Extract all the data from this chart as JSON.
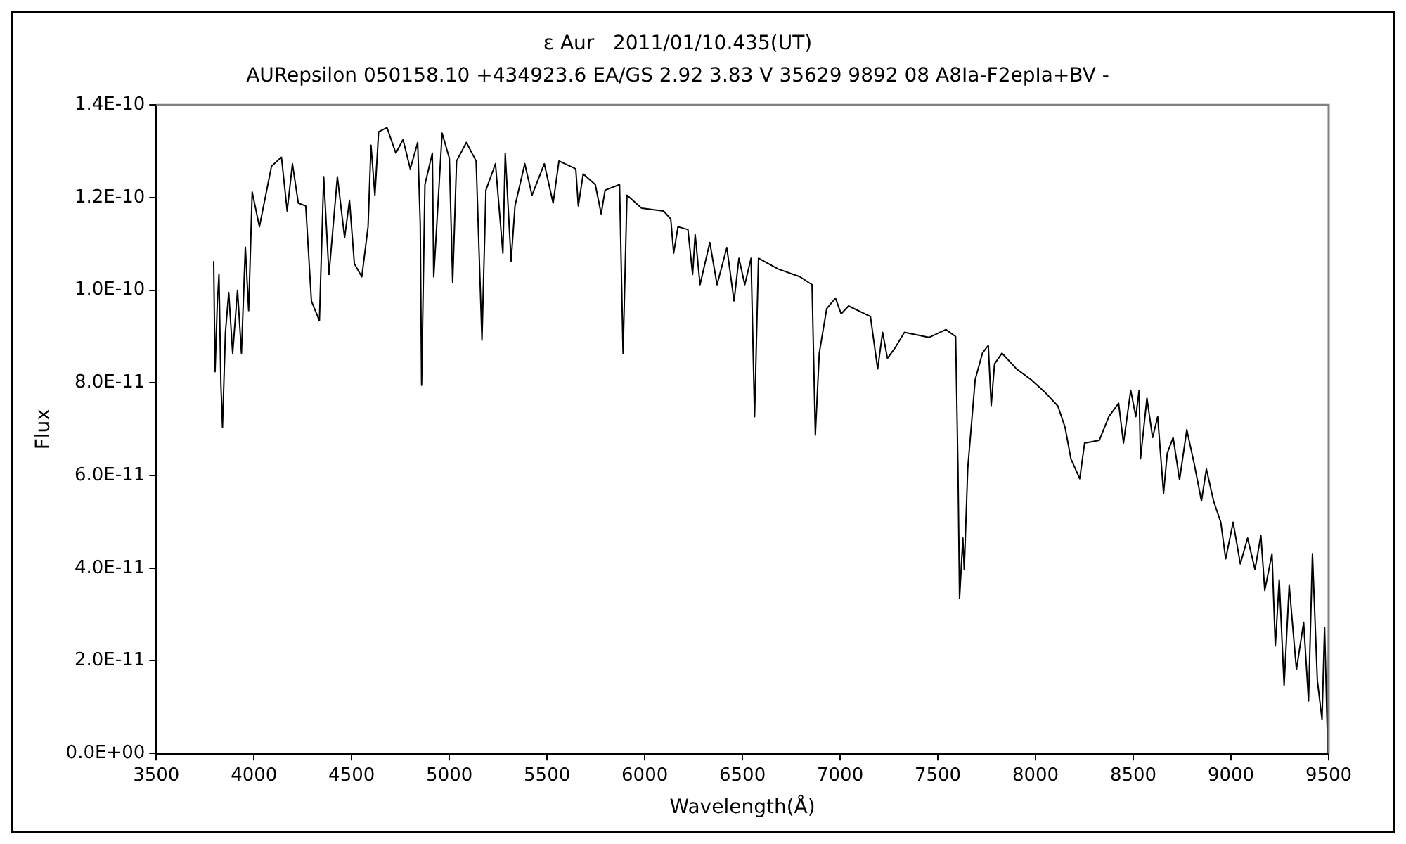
{
  "chart_data": {
    "type": "line",
    "title": "ε Aur   2011/01/10.435(UT)",
    "subtitle": "AURepsilon 050158.10 +434923.6 EA/GS 2.92 3.83 V 35629 9892 08 A8Ia-F2epIa+BV -",
    "xlabel": "Wavelength(Å)",
    "ylabel": "Flux",
    "color": "#000000",
    "grid": false,
    "xlim": [
      3500,
      9500
    ],
    "xticks": [
      3500,
      4000,
      4500,
      5000,
      5500,
      6000,
      6500,
      7000,
      7500,
      8000,
      8500,
      9000,
      9500
    ],
    "ylim": [
      0,
      1.4e-10
    ],
    "yticks": [
      {
        "value": 0,
        "label": "0.0E+00"
      },
      {
        "value": 2e-11,
        "label": "2.0E-11"
      },
      {
        "value": 4e-11,
        "label": "4.0E-11"
      },
      {
        "value": 6e-11,
        "label": "6.0E-11"
      },
      {
        "value": 8e-11,
        "label": "8.0E-11"
      },
      {
        "value": 1e-10,
        "label": "1.0E-10"
      },
      {
        "value": 1.2e-10,
        "label": "1.2E-10"
      },
      {
        "value": 1.4e-10,
        "label": "1.4E-10"
      }
    ],
    "x": [
      3794,
      3801,
      3812,
      3821,
      3831,
      3839,
      3854,
      3871,
      3891,
      3916,
      3936,
      3956,
      3973,
      3991,
      4028,
      4090,
      4141,
      4170,
      4197,
      4227,
      4265,
      4294,
      4335,
      4357,
      4384,
      4427,
      4464,
      4489,
      4514,
      4552,
      4584,
      4599,
      4619,
      4638,
      4681,
      4726,
      4763,
      4800,
      4838,
      4851,
      4858,
      4875,
      4913,
      4920,
      4963,
      5000,
      5017,
      5037,
      5087,
      5137,
      5167,
      5187,
      5236,
      5274,
      5286,
      5316,
      5336,
      5386,
      5423,
      5486,
      5531,
      5561,
      5647,
      5660,
      5685,
      5747,
      5777,
      5797,
      5871,
      5889,
      5909,
      5984,
      6096,
      6133,
      6148,
      6170,
      6221,
      6245,
      6258,
      6283,
      6333,
      6370,
      6420,
      6457,
      6482,
      6512,
      6544,
      6562,
      6582,
      6682,
      6794,
      6856,
      6873,
      6893,
      6931,
      6976,
      7005,
      7043,
      7155,
      7192,
      7217,
      7242,
      7280,
      7329,
      7454,
      7541,
      7591,
      7603,
      7611,
      7628,
      7635,
      7653,
      7691,
      7728,
      7758,
      7773,
      7790,
      7828,
      7903,
      7977,
      8052,
      8114,
      8151,
      8181,
      8226,
      8251,
      8326,
      8375,
      8425,
      8450,
      8487,
      8513,
      8530,
      8537,
      8570,
      8599,
      8625,
      8655,
      8674,
      8704,
      8737,
      8774,
      8812,
      8849,
      8874,
      8911,
      8948,
      8973,
      9011,
      9048,
      9085,
      9123,
      9153,
      9173,
      9210,
      9227,
      9247,
      9272,
      9298,
      9335,
      9372,
      9397,
      9417,
      9442,
      9466,
      9479,
      9496,
      9500
    ],
    "values": [
      1.063e-10,
      8.24e-11,
      9.66e-11,
      1.034e-10,
      7.95e-11,
      7.04e-11,
      9.09e-11,
      9.95e-11,
      8.64e-11,
      1e-10,
      8.64e-11,
      1.093e-10,
      9.56e-11,
      1.212e-10,
      1.137e-10,
      1.268e-10,
      1.287e-10,
      1.171e-10,
      1.273e-10,
      1.188e-10,
      1.182e-10,
      9.77e-11,
      9.34e-11,
      1.245e-10,
      1.034e-10,
      1.245e-10,
      1.114e-10,
      1.194e-10,
      1.057e-10,
      1.029e-10,
      1.137e-10,
      1.313e-10,
      1.205e-10,
      1.342e-10,
      1.351e-10,
      1.296e-10,
      1.325e-10,
      1.262e-10,
      1.319e-10,
      1.143e-10,
      7.95e-11,
      1.228e-10,
      1.296e-10,
      1.029e-10,
      1.339e-10,
      1.285e-10,
      1.017e-10,
      1.279e-10,
      1.319e-10,
      1.279e-10,
      8.92e-11,
      1.216e-10,
      1.273e-10,
      1.08e-10,
      1.296e-10,
      1.063e-10,
      1.182e-10,
      1.273e-10,
      1.205e-10,
      1.273e-10,
      1.188e-10,
      1.279e-10,
      1.262e-10,
      1.182e-10,
      1.251e-10,
      1.228e-10,
      1.165e-10,
      1.216e-10,
      1.228e-10,
      8.64e-11,
      1.205e-10,
      1.177e-10,
      1.171e-10,
      1.154e-10,
      1.08e-10,
      1.137e-10,
      1.131e-10,
      1.034e-10,
      1.12e-10,
      1.012e-10,
      1.103e-10,
      1.012e-10,
      1.092e-10,
      9.77e-11,
      1.069e-10,
      1.012e-10,
      1.069e-10,
      7.27e-11,
      1.069e-10,
      1.046e-10,
      1.029e-10,
      1.012e-10,
      6.87e-11,
      8.64e-11,
      9.6e-11,
      9.83e-11,
      9.49e-11,
      9.66e-11,
      9.43e-11,
      8.3e-11,
      9.09e-11,
      8.53e-11,
      8.75e-11,
      9.09e-11,
      8.98e-11,
      9.15e-11,
      9e-11,
      6.15e-11,
      3.35e-11,
      4.65e-11,
      3.97e-11,
      6.15e-11,
      8.07e-11,
      8.64e-11,
      8.81e-11,
      7.51e-11,
      8.41e-11,
      8.64e-11,
      8.3e-11,
      8.07e-11,
      7.78e-11,
      7.5e-11,
      7.04e-11,
      6.36e-11,
      5.93e-11,
      6.7e-11,
      6.76e-11,
      7.27e-11,
      7.56e-11,
      6.7e-11,
      7.84e-11,
      7.27e-11,
      7.84e-11,
      6.36e-11,
      7.67e-11,
      6.82e-11,
      7.27e-11,
      5.62e-11,
      6.48e-11,
      6.82e-11,
      5.91e-11,
      6.99e-11,
      6.25e-11,
      5.45e-11,
      6.14e-11,
      5.45e-11,
      4.99e-11,
      4.2e-11,
      4.99e-11,
      4.09e-11,
      4.65e-11,
      3.97e-11,
      4.71e-11,
      3.52e-11,
      4.31e-11,
      2.32e-11,
      3.75e-11,
      1.47e-11,
      3.63e-11,
      1.81e-11,
      2.83e-11,
      1.13e-11,
      4.31e-11,
      1.58e-11,
      7.3e-12,
      2.72e-11,
      0,
      2.72e-11
    ]
  }
}
